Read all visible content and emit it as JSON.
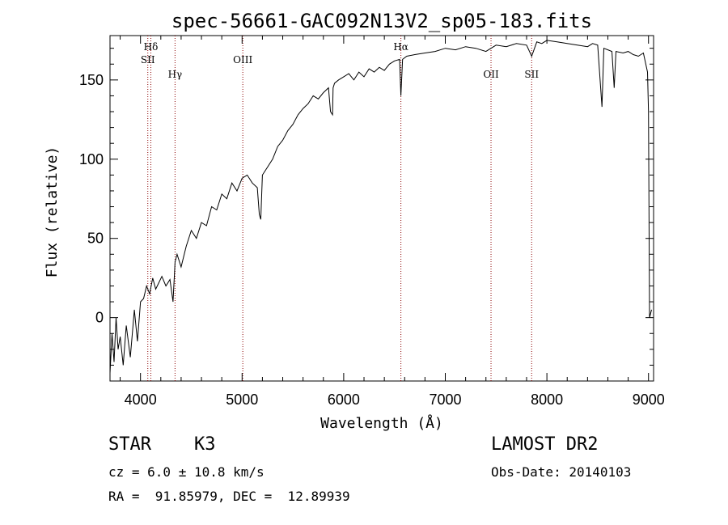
{
  "chart_data": {
    "type": "line",
    "title": "spec-56661-GAC092N13V2_sp05-183.fits",
    "xlabel": "Wavelength (Å)",
    "ylabel": "Flux (relative)",
    "xlim": [
      3700,
      9050
    ],
    "ylim": [
      -40,
      178
    ],
    "x_ticks": [
      4000,
      5000,
      6000,
      7000,
      8000,
      9000
    ],
    "y_ticks": [
      0,
      50,
      100,
      150
    ],
    "series": [
      {
        "name": "spectrum",
        "x": [
          3700,
          3720,
          3740,
          3760,
          3780,
          3800,
          3830,
          3860,
          3900,
          3940,
          3970,
          4000,
          4030,
          4060,
          4090,
          4120,
          4150,
          4180,
          4210,
          4250,
          4290,
          4320,
          4340,
          4360,
          4400,
          4450,
          4500,
          4550,
          4600,
          4650,
          4700,
          4750,
          4800,
          4850,
          4900,
          4950,
          5000,
          5050,
          5100,
          5150,
          5170,
          5184,
          5200,
          5250,
          5300,
          5350,
          5400,
          5450,
          5500,
          5550,
          5600,
          5650,
          5700,
          5750,
          5800,
          5850,
          5870,
          5890,
          5896,
          5910,
          5950,
          6000,
          6050,
          6100,
          6150,
          6200,
          6250,
          6300,
          6350,
          6400,
          6450,
          6500,
          6550,
          6563,
          6580,
          6620,
          6700,
          6800,
          6900,
          7000,
          7100,
          7200,
          7300,
          7400,
          7500,
          7600,
          7700,
          7800,
          7850,
          7900,
          7950,
          8000,
          8100,
          8200,
          8300,
          8400,
          8450,
          8500,
          8542,
          8560,
          8600,
          8640,
          8662,
          8680,
          8750,
          8800,
          8850,
          8900,
          8950,
          8990,
          9000,
          9010,
          9030
        ],
        "values": [
          -35,
          -10,
          -28,
          0,
          -20,
          -12,
          -30,
          -5,
          -25,
          5,
          -15,
          10,
          12,
          20,
          15,
          25,
          18,
          22,
          26,
          20,
          24,
          10,
          35,
          40,
          32,
          45,
          55,
          50,
          60,
          58,
          70,
          68,
          78,
          75,
          85,
          80,
          88,
          90,
          85,
          82,
          65,
          62,
          90,
          95,
          100,
          108,
          112,
          118,
          122,
          128,
          132,
          135,
          140,
          138,
          142,
          145,
          130,
          128,
          145,
          148,
          150,
          152,
          154,
          150,
          155,
          152,
          157,
          155,
          158,
          156,
          160,
          162,
          163,
          140,
          163,
          165,
          166,
          167,
          168,
          170,
          169,
          171,
          170,
          168,
          172,
          171,
          173,
          172,
          165,
          174,
          173,
          175,
          174,
          173,
          172,
          171,
          173,
          172,
          133,
          170,
          169,
          168,
          145,
          168,
          167,
          168,
          166,
          165,
          167,
          155,
          130,
          0,
          5
        ]
      }
    ],
    "annotations": [
      {
        "x": 4102,
        "label": "Hδ",
        "row": "top"
      },
      {
        "x": 4072,
        "label": "SII",
        "row": "second"
      },
      {
        "x": 4340,
        "label": "Hγ",
        "row": "third"
      },
      {
        "x": 5007,
        "label": "OIII",
        "row": "second"
      },
      {
        "x": 6563,
        "label": "Hα",
        "row": "top"
      },
      {
        "x": 7450,
        "label": "OII",
        "row": "fourth"
      },
      {
        "x": 7850,
        "label": "SII",
        "row": "fourth"
      }
    ]
  },
  "info": {
    "class": "STAR",
    "subclass": "K3",
    "survey": "LAMOST DR2",
    "cz": "cz = 6.0 ± 10.8 km/s",
    "obs_date": "Obs-Date: 20140103",
    "coords": "RA =  91.85979, DEC =  12.89939"
  },
  "colors": {
    "spectrum": "#000000",
    "line_marker": "#8b0000",
    "axis": "#000000"
  }
}
